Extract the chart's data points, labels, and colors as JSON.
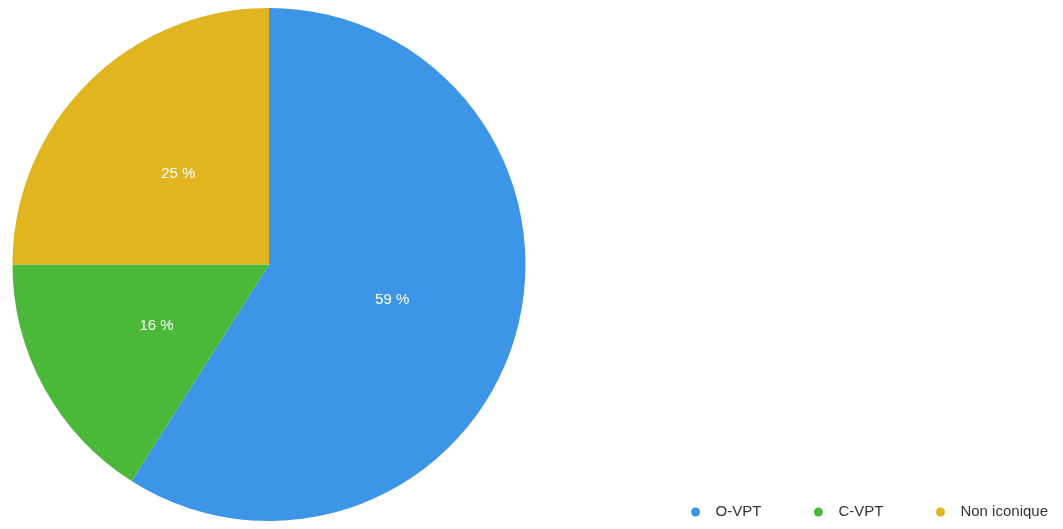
{
  "chart_data": {
    "type": "pie",
    "categories": [
      "O-VPT",
      "C-VPT",
      "Non iconique"
    ],
    "values": [
      59,
      16,
      25
    ],
    "colors": [
      "#3d95e8",
      "#4cb83a",
      "#e0b520"
    ],
    "value_labels": [
      "59 %",
      "16 %",
      "25 %"
    ],
    "legend": "bottom right"
  }
}
